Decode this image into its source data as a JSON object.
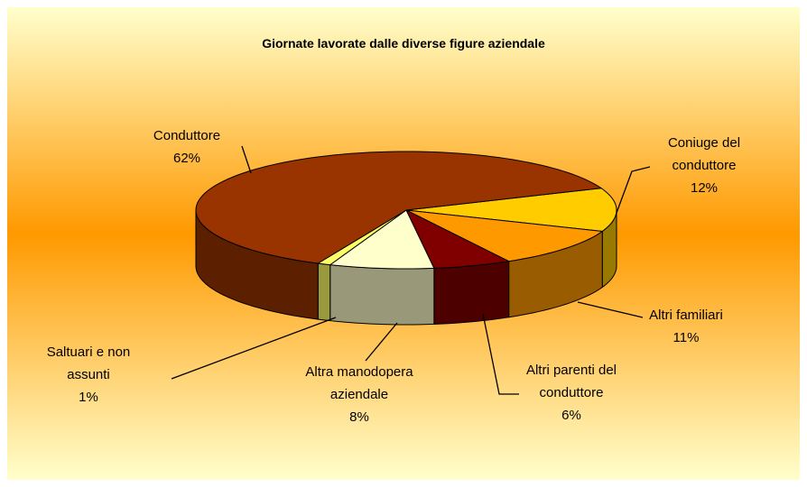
{
  "chart_data": {
    "type": "pie3d",
    "title": "Giornate lavorate dalle diverse figure aziendale",
    "categories": [
      "Coniuge del conduttore",
      "Altri familiari",
      "Altri parenti del conduttore",
      "Altra manodopera aziendale",
      "Saltuari e non assunti",
      "Conduttore"
    ],
    "values": [
      12,
      11,
      6,
      8,
      1,
      62
    ],
    "value_labels": [
      "12%",
      "11%",
      "6%",
      "8%",
      "1%",
      "62%"
    ],
    "colors": [
      "#ffcc00",
      "#ff9900",
      "#800000",
      "#ffffcc",
      "#ffff66",
      "#993300"
    ]
  }
}
